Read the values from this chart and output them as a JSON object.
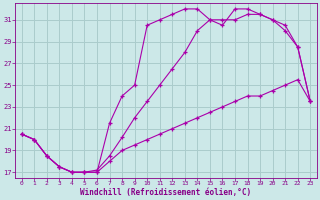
{
  "background_color": "#cce8e8",
  "line_color": "#aa00aa",
  "grid_color": "#aacccc",
  "xlabel": "Windchill (Refroidissement éolien,°C)",
  "xlabel_color": "#880088",
  "tick_color": "#880088",
  "xlim": [
    -0.5,
    23.5
  ],
  "ylim": [
    16.5,
    32.5
  ],
  "yticks": [
    17,
    19,
    21,
    23,
    25,
    27,
    29,
    31
  ],
  "xticks": [
    0,
    1,
    2,
    3,
    4,
    5,
    6,
    7,
    8,
    9,
    10,
    11,
    12,
    13,
    14,
    15,
    16,
    17,
    18,
    19,
    20,
    21,
    22,
    23
  ],
  "line1_x": [
    0,
    1,
    2,
    3,
    4,
    5,
    6,
    7,
    8,
    9,
    10,
    11,
    12,
    13,
    14,
    15,
    16,
    17,
    18,
    19,
    20,
    21,
    22,
    23
  ],
  "line1_y": [
    20.5,
    20.0,
    18.5,
    17.5,
    17.0,
    17.0,
    17.2,
    18.5,
    20.2,
    22.0,
    23.5,
    25.0,
    26.5,
    28.0,
    30.0,
    31.0,
    31.0,
    31.0,
    31.5,
    31.5,
    31.0,
    30.5,
    28.5,
    23.5
  ],
  "line2_x": [
    0,
    1,
    2,
    3,
    4,
    5,
    6,
    7,
    8,
    9,
    10,
    11,
    12,
    13,
    14,
    15,
    16,
    17,
    18,
    19,
    20,
    21,
    22,
    23
  ],
  "line2_y": [
    20.5,
    20.0,
    18.5,
    17.5,
    17.0,
    17.0,
    17.0,
    21.5,
    24.0,
    25.0,
    30.5,
    31.0,
    31.5,
    32.0,
    32.0,
    31.0,
    30.5,
    32.0,
    32.0,
    31.5,
    31.0,
    30.0,
    28.5,
    23.5
  ],
  "line3_x": [
    0,
    1,
    2,
    3,
    4,
    5,
    6,
    7,
    8,
    9,
    10,
    11,
    12,
    13,
    14,
    15,
    16,
    17,
    18,
    19,
    20,
    21,
    22,
    23
  ],
  "line3_y": [
    20.5,
    20.0,
    18.5,
    17.5,
    17.0,
    17.0,
    17.0,
    18.0,
    19.0,
    19.5,
    20.0,
    20.5,
    21.0,
    21.5,
    22.0,
    22.5,
    23.0,
    23.5,
    24.0,
    24.0,
    24.5,
    25.0,
    25.5,
    23.5
  ]
}
